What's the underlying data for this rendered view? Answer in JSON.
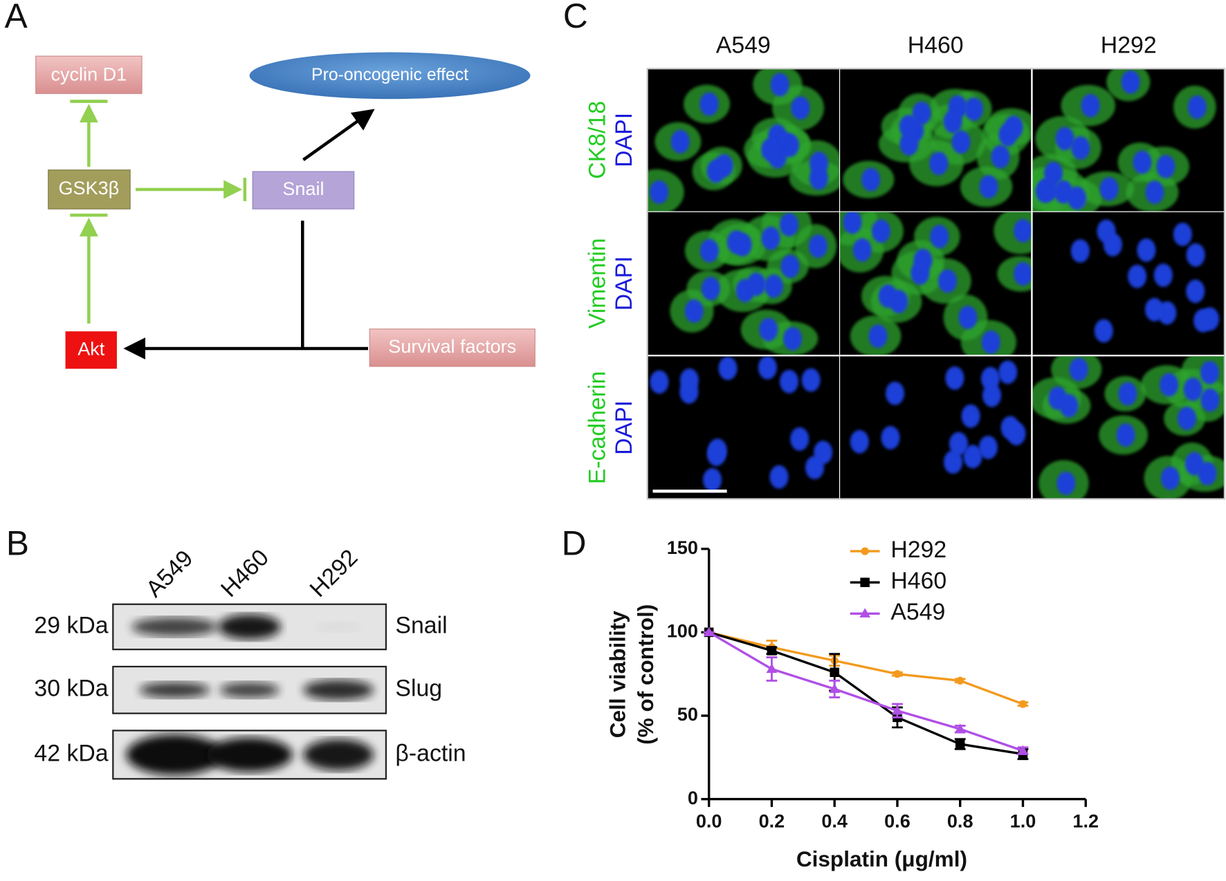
{
  "panel_labels": [
    "A",
    "B",
    "C",
    "D"
  ],
  "diagram": {
    "nodes": [
      "cyclin D1",
      "Pro-oncogenic effect",
      "GSK3β",
      "Snail",
      "Akt",
      "Survival factors"
    ]
  },
  "blot": {
    "lanes": [
      "A549",
      "H460",
      "H292"
    ],
    "rows": [
      {
        "size": "29 kDa",
        "protein": "Snail"
      },
      {
        "size": "30 kDa",
        "protein": "Slug"
      },
      {
        "size": "42 kDa",
        "protein": "β-actin"
      }
    ]
  },
  "microscopy": {
    "columns": [
      "A549",
      "H460",
      "H292"
    ],
    "rows": [
      [
        "CK8/18",
        "DAPI"
      ],
      [
        "Vimentin",
        "DAPI"
      ],
      [
        "E-cadherin",
        "DAPI"
      ]
    ]
  },
  "chart_data": {
    "type": "line",
    "xlabel": "Cisplatin (μg/ml)",
    "ylabel": [
      "Cell viability",
      "(% of control)"
    ],
    "x": [
      0,
      0.2,
      0.4,
      0.6,
      0.8,
      1.0
    ],
    "xlim": [
      0,
      1.2
    ],
    "xticks": [
      {
        "value": 0,
        "label": "0.0"
      },
      0.2,
      0.4,
      0.6,
      0.8,
      {
        "value": 1.0,
        "label": "1.0"
      },
      1.2
    ],
    "ylim": [
      0,
      150
    ],
    "yticks": [
      0,
      50,
      100,
      150
    ],
    "series": [
      {
        "name": "H292",
        "color": "#f39a1e",
        "marker": "circle",
        "values": [
          100,
          91,
          83,
          75,
          71,
          57
        ],
        "errors": [
          0,
          4,
          3,
          1,
          1,
          1
        ]
      },
      {
        "name": "H460",
        "color": "#000000",
        "marker": "square",
        "values": [
          100,
          89,
          76,
          49,
          33,
          27
        ],
        "errors": [
          0,
          2,
          11,
          6,
          3,
          3
        ]
      },
      {
        "name": "A549",
        "color": "#b04fe6",
        "marker": "triangle",
        "values": [
          100,
          78,
          66,
          53,
          42,
          29
        ],
        "errors": [
          0,
          7,
          5,
          4,
          2,
          2
        ]
      }
    ]
  }
}
